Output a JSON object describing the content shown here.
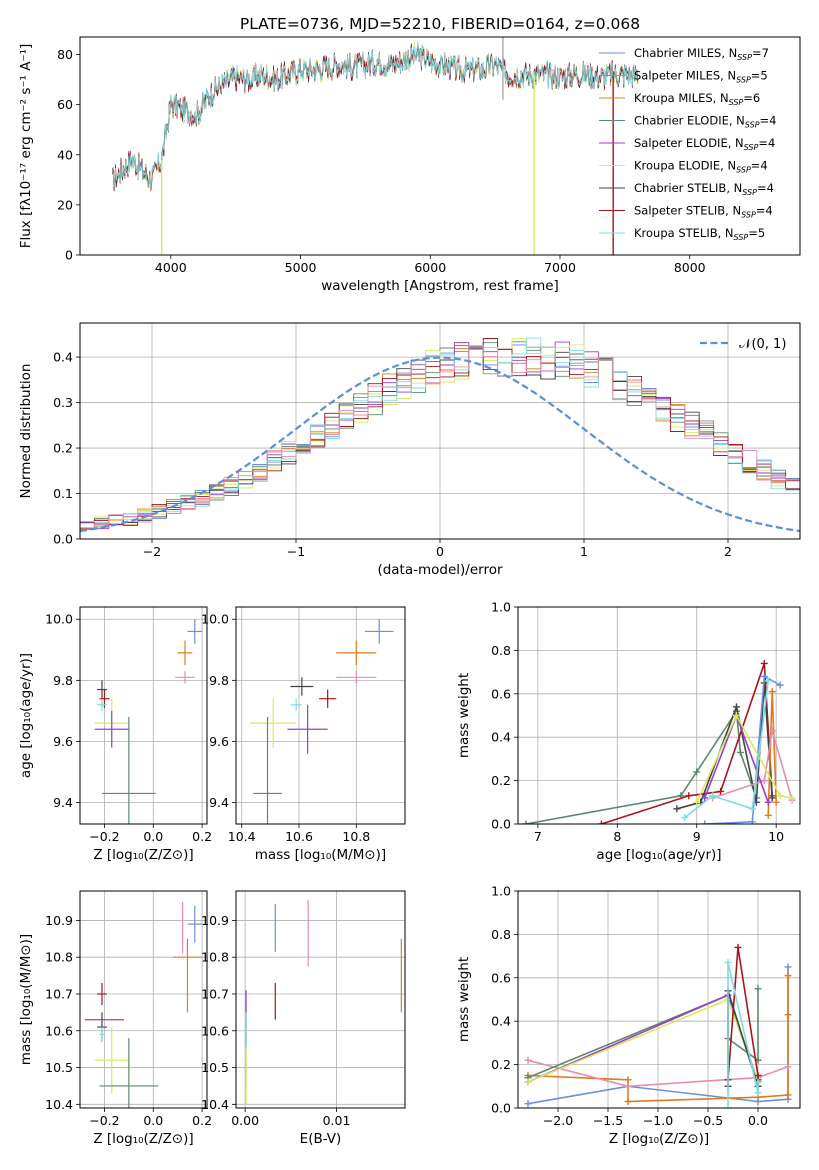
{
  "title": "PLATE=0736, MJD=52210, FIBERID=0164, z=0.068",
  "colors": {
    "chabrier_miles": "#6a8fe0",
    "salpeter_miles": "#e67a3a",
    "kroupa_miles": "#e07b1e",
    "chabrier_elodie": "#5b8a6b",
    "salpeter_elodie": "#9b3dc9",
    "kroupa_elodie": "#d6ea5e",
    "chabrier_stelib": "#444444",
    "salpeter_stelib": "#a8151a",
    "kroupa_stelib": "#7fdde0",
    "pink": "#e88cb2",
    "gauss": "#5b8fdc"
  },
  "chart_data": [
    {
      "type": "line",
      "id": "spectrum",
      "xlabel": "wavelength [Angstrom, rest frame]",
      "ylabel": "Flux [fλ10⁻¹⁷ erg cm⁻² s⁻¹ A⁻¹]",
      "xlim": [
        3300,
        8850
      ],
      "ylim": [
        0,
        87
      ],
      "xticks": [
        4000,
        5000,
        6000,
        7000,
        8000
      ],
      "yticks": [
        0,
        20,
        40,
        60,
        80
      ],
      "legend": [
        {
          "label": "Chabrier MILES, N",
          "sub": "SSP",
          "n": "=7",
          "color": "#6a8fe0"
        },
        {
          "label": "Salpeter MILES, N",
          "sub": "SSP",
          "n": "=5",
          "color": "#e67a3a"
        },
        {
          "label": "Kroupa MILES, N",
          "sub": "SSP",
          "n": "=6",
          "color": "#e07b1e"
        },
        {
          "label": "Chabrier ELODIE, N",
          "sub": "SSP",
          "n": "=4",
          "color": "#5b8a6b"
        },
        {
          "label": "Salpeter ELODIE, N",
          "sub": "SSP",
          "n": "=4",
          "color": "#9b3dc9"
        },
        {
          "label": "Kroupa ELODIE, N",
          "sub": "SSP",
          "n": "=4",
          "color": "#d6ea5e"
        },
        {
          "label": "Chabrier STELIB, N",
          "sub": "SSP",
          "n": "=4",
          "color": "#444444"
        },
        {
          "label": "Salpeter STELIB, N",
          "sub": "SSP",
          "n": "=4",
          "color": "#a8151a"
        },
        {
          "label": "Kroupa STELIB, N",
          "sub": "SSP",
          "n": "=5",
          "color": "#7fdde0"
        }
      ],
      "legend_placement": "upper right",
      "x": [
        3550,
        3700,
        3850,
        3930,
        4000,
        4100,
        4200,
        4300,
        4400,
        4500,
        4600,
        4700,
        4800,
        4900,
        5000,
        5100,
        5200,
        5300,
        5400,
        5500,
        5600,
        5700,
        5800,
        5900,
        6000,
        6100,
        6200,
        6300,
        6400,
        6500,
        6600,
        6700,
        6800,
        6900,
        7000,
        7100,
        7200,
        7300,
        7400,
        7500,
        7600
      ],
      "y": [
        30,
        38,
        30,
        38,
        60,
        58,
        56,
        64,
        68,
        71,
        70,
        72,
        70,
        72,
        74,
        74,
        75,
        76,
        75,
        76,
        77,
        76,
        78,
        80,
        77,
        76,
        74,
        74,
        74,
        76,
        72,
        72,
        72,
        72,
        71,
        72,
        72,
        71,
        72,
        72,
        72
      ],
      "spikes": [
        {
          "x": 3930,
          "ymin": 0,
          "color": "#d6ea5e"
        },
        {
          "x": 6800,
          "ymin": 0,
          "color": "#d6ea5e"
        },
        {
          "x": 7410,
          "ymin": 0,
          "color": "#a8151a"
        },
        {
          "x": 6560,
          "ymin": 62,
          "ymax": 87,
          "color": "#aaaaaa"
        }
      ]
    },
    {
      "type": "histogram",
      "id": "residuals",
      "xlabel": "(data-model)/error",
      "ylabel": "Normed distribution",
      "xlim": [
        -2.5,
        2.5
      ],
      "ylim": [
        0,
        0.475
      ],
      "xticks": [
        -2,
        -1,
        0,
        1,
        2
      ],
      "yticks": [
        0.0,
        0.1,
        0.2,
        0.3,
        0.4
      ],
      "grid": true,
      "bin_width": 0.1,
      "bin_start": -2.5,
      "envelope": [
        0.03,
        0.035,
        0.04,
        0.045,
        0.05,
        0.06,
        0.07,
        0.08,
        0.09,
        0.1,
        0.115,
        0.13,
        0.15,
        0.17,
        0.19,
        0.21,
        0.23,
        0.25,
        0.27,
        0.29,
        0.31,
        0.33,
        0.345,
        0.36,
        0.375,
        0.385,
        0.39,
        0.395,
        0.4,
        0.4,
        0.4,
        0.4,
        0.395,
        0.39,
        0.385,
        0.375,
        0.36,
        0.345,
        0.33,
        0.31,
        0.29,
        0.27,
        0.25,
        0.23,
        0.21,
        0.19,
        0.17,
        0.15,
        0.13,
        0.115,
        0.1,
        0.09,
        0.08,
        0.07,
        0.06,
        0.05,
        0.045,
        0.04,
        0.035,
        0.03
      ],
      "legend": [
        {
          "label": "𝒩(0, 1)",
          "color": "#5b8fdc",
          "style": "dashed"
        }
      ],
      "legend_placement": "upper right"
    },
    {
      "type": "scatter",
      "id": "age_vs_Z",
      "xlabel": "Z [log₁₀(Z/Z⊙)]",
      "ylabel": "age  [log₁₀(age/yr)]",
      "xlim": [
        -0.3,
        0.22
      ],
      "ylim": [
        9.33,
        10.04
      ],
      "xticks": [
        -0.2,
        0.0,
        0.2
      ],
      "yticks": [
        9.4,
        9.6,
        9.8,
        10.0
      ],
      "grid": true,
      "points": [
        {
          "x": 0.17,
          "y": 9.96,
          "xerr": 0.03,
          "yerr": 0.04,
          "color": "#6a8fe0"
        },
        {
          "x": 0.13,
          "y": 9.89,
          "xerr": 0.03,
          "yerr": 0.04,
          "color": "#e07b1e"
        },
        {
          "x": 0.13,
          "y": 9.81,
          "xerr": 0.04,
          "yerr": 0.02,
          "color": "#e88cb2"
        },
        {
          "x": -0.21,
          "y": 9.77,
          "xerr": 0.02,
          "yerr": 0.03,
          "color": "#444444"
        },
        {
          "x": -0.2,
          "y": 9.74,
          "xerr": 0.02,
          "yerr": 0.03,
          "color": "#a8151a"
        },
        {
          "x": -0.21,
          "y": 9.72,
          "xerr": 0.02,
          "yerr": 0.02,
          "color": "#7fdde0"
        },
        {
          "x": -0.17,
          "y": 9.66,
          "xerr": 0.07,
          "yerr": 0.08,
          "color": "#d6ea5e"
        },
        {
          "x": -0.17,
          "y": 9.64,
          "xerr": 0.07,
          "yerr": 0.06,
          "color": "#9b3dc9"
        },
        {
          "x": -0.1,
          "y": 9.43,
          "xerr": 0.11,
          "yerr": 0.25,
          "color": "#5b8a6b"
        }
      ]
    },
    {
      "type": "scatter",
      "id": "age_vs_mass",
      "xlabel": "mass [log₁₀(M/M⊙)]",
      "ylabel": "",
      "xlim": [
        10.38,
        10.97
      ],
      "ylim": [
        9.33,
        10.04
      ],
      "xticks": [
        10.4,
        10.6,
        10.8
      ],
      "yticks": [
        9.4,
        9.6,
        9.8,
        10.0
      ],
      "grid": true,
      "points": [
        {
          "x": 10.88,
          "y": 9.96,
          "xerr": 0.05,
          "yerr": 0.04,
          "color": "#6a8fe0"
        },
        {
          "x": 10.8,
          "y": 9.89,
          "xerr": 0.07,
          "yerr": 0.04,
          "color": "#e07b1e"
        },
        {
          "x": 10.8,
          "y": 9.81,
          "xerr": 0.07,
          "yerr": 0.02,
          "color": "#e88cb2"
        },
        {
          "x": 10.61,
          "y": 9.78,
          "xerr": 0.04,
          "yerr": 0.03,
          "color": "#444444"
        },
        {
          "x": 10.7,
          "y": 9.74,
          "xerr": 0.03,
          "yerr": 0.03,
          "color": "#a8151a"
        },
        {
          "x": 10.59,
          "y": 9.72,
          "xerr": 0.02,
          "yerr": 0.02,
          "color": "#7fdde0"
        },
        {
          "x": 10.51,
          "y": 9.66,
          "xerr": 0.08,
          "yerr": 0.08,
          "color": "#d6ea5e"
        },
        {
          "x": 10.63,
          "y": 9.64,
          "xerr": 0.07,
          "yerr": 0.08,
          "color": "#9b3dc9"
        },
        {
          "x": 10.49,
          "y": 9.43,
          "xerr": 0.05,
          "yerr": 0.25,
          "color": "#5b8a6b"
        }
      ]
    },
    {
      "type": "line",
      "id": "weight_vs_age",
      "xlabel": "age  [log₁₀(age/yr)]",
      "ylabel": "mass weight",
      "xlim": [
        6.75,
        10.3
      ],
      "ylim": [
        0,
        1.0
      ],
      "xticks": [
        7,
        8,
        9,
        10
      ],
      "yticks": [
        0.0,
        0.2,
        0.4,
        0.6,
        0.8,
        1.0
      ],
      "grid": true,
      "series": [
        {
          "color": "#5b8a6b",
          "x": [
            6.85,
            8.8,
            9.0,
            9.5,
            9.55,
            9.75
          ],
          "y": [
            0.0,
            0.13,
            0.24,
            0.52,
            0.33,
            0.12
          ]
        },
        {
          "color": "#a8151a",
          "x": [
            7.8,
            8.9,
            9.3,
            9.85,
            9.95
          ],
          "y": [
            0.0,
            0.13,
            0.15,
            0.74,
            0.13
          ]
        },
        {
          "color": "#444444",
          "x": [
            8.75,
            9.05,
            9.5,
            9.75,
            9.85,
            9.95
          ],
          "y": [
            0.07,
            0.1,
            0.54,
            0.1,
            0.65,
            0.12
          ]
        },
        {
          "color": "#6a8fe0",
          "x": [
            9.1,
            9.7,
            9.85,
            10.05
          ],
          "y": [
            0.0,
            0.01,
            0.68,
            0.64
          ]
        },
        {
          "color": "#e07b1e",
          "x": [
            9.9,
            9.95,
            10.0
          ],
          "y": [
            0.04,
            0.61,
            0.1
          ]
        },
        {
          "color": "#e88cb2",
          "x": [
            9.2,
            9.85,
            9.95,
            10.2
          ],
          "y": [
            0.12,
            0.2,
            0.43,
            0.11
          ]
        },
        {
          "color": "#9b3dc9",
          "x": [
            9.1,
            9.5,
            9.9
          ],
          "y": [
            0.12,
            0.5,
            0.1
          ]
        },
        {
          "color": "#d6ea5e",
          "x": [
            9.0,
            9.5,
            10.05,
            10.2
          ],
          "y": [
            0.1,
            0.5,
            0.13,
            0.12
          ]
        },
        {
          "color": "#7fdde0",
          "x": [
            8.85,
            9.2,
            9.7,
            9.9
          ],
          "y": [
            0.03,
            0.13,
            0.07,
            0.66
          ]
        }
      ]
    },
    {
      "type": "scatter",
      "id": "mass_vs_Z",
      "xlabel": "Z [log₁₀(Z/Z⊙)]",
      "ylabel": "mass [log₁₀(M/M⊙)]",
      "xlim": [
        -0.3,
        0.22
      ],
      "ylim": [
        10.39,
        10.98
      ],
      "xticks": [
        -0.2,
        0.0,
        0.2
      ],
      "yticks": [
        10.4,
        10.5,
        10.6,
        10.7,
        10.8,
        10.9
      ],
      "grid": true,
      "points": [
        {
          "x": 0.17,
          "y": 10.89,
          "xerr": 0.03,
          "yerr": 0.05,
          "color": "#6a8fe0"
        },
        {
          "x": 0.12,
          "y": 10.88,
          "xerr": 0.0,
          "yerr": 0.07,
          "color": "#e88cb2"
        },
        {
          "x": 0.14,
          "y": 10.8,
          "xerr": 0.06,
          "yerr": 0.0,
          "color": "#e67a3a"
        },
        {
          "x": 0.14,
          "y": 10.75,
          "xerr": 0.0,
          "yerr": 0.1,
          "color": "#e07b1e"
        },
        {
          "x": -0.21,
          "y": 10.7,
          "xerr": 0.02,
          "yerr": 0.03,
          "color": "#a8151a"
        },
        {
          "x": -0.2,
          "y": 10.63,
          "xerr": 0.08,
          "yerr": 0.0,
          "color": "#9b3dc9"
        },
        {
          "x": -0.21,
          "y": 10.61,
          "xerr": 0.02,
          "yerr": 0.04,
          "color": "#444444"
        },
        {
          "x": -0.21,
          "y": 10.59,
          "xerr": 0.01,
          "yerr": 0.02,
          "color": "#7fdde0"
        },
        {
          "x": -0.17,
          "y": 10.52,
          "xerr": 0.07,
          "yerr": 0.09,
          "color": "#d6ea5e"
        },
        {
          "x": -0.1,
          "y": 10.45,
          "xerr": 0.12,
          "yerr": 0.13,
          "color": "#5b8a6b"
        }
      ]
    },
    {
      "type": "scatter",
      "id": "mass_vs_ebv",
      "xlabel": "E(B-V)",
      "ylabel": "",
      "xlim": [
        -0.001,
        0.0175
      ],
      "ylim": [
        10.39,
        10.98
      ],
      "xticks": [
        0.0,
        0.01
      ],
      "yticks": [
        10.4,
        10.5,
        10.6,
        10.7,
        10.8,
        10.9
      ],
      "grid": true,
      "points": [
        {
          "x": 0.0033,
          "y": 10.88,
          "yerr": 0.065,
          "color": "#6a8fe0"
        },
        {
          "x": 0.0069,
          "y": 10.865,
          "yerr": 0.09,
          "color": "#e88cb2"
        },
        {
          "x": 0.0171,
          "y": 10.75,
          "yerr": 0.1,
          "color": "#e07b1e"
        },
        {
          "x": 0.0033,
          "y": 10.68,
          "yerr": 0.05,
          "color": "#a8151a"
        },
        {
          "x": 0.0001,
          "y": 10.63,
          "yerr": 0.08,
          "color": "#9b3dc9"
        },
        {
          "x": 0.0001,
          "y": 10.55,
          "yerr": 0.1,
          "color": "#7fdde0"
        },
        {
          "x": 0.0001,
          "y": 10.48,
          "yerr": 0.08,
          "color": "#d6ea5e"
        }
      ]
    },
    {
      "type": "line",
      "id": "weight_vs_Z",
      "xlabel": "Z [log₁₀(Z/Z⊙)]",
      "ylabel": "mass weight",
      "xlim": [
        -2.4,
        0.42
      ],
      "ylim": [
        0,
        1.0
      ],
      "xticks": [
        -2.0,
        -1.5,
        -1.0,
        -0.5,
        0.0
      ],
      "yticks": [
        0.0,
        0.2,
        0.4,
        0.6,
        0.8,
        1.0
      ],
      "grid": true,
      "series": [
        {
          "color": "#6a8fe0",
          "x": [
            -2.3,
            -1.3,
            0.0,
            0.3,
            0.3
          ],
          "y": [
            0.02,
            0.1,
            0.03,
            0.04,
            0.65
          ]
        },
        {
          "color": "#e07b1e",
          "x": [
            -2.3,
            -1.3,
            -1.3,
            0.0,
            0.3,
            0.3,
            0.3
          ],
          "y": [
            0.15,
            0.13,
            0.03,
            0.05,
            0.06,
            0.43,
            0.61
          ]
        },
        {
          "color": "#e88cb2",
          "x": [
            -2.3,
            -1.3,
            0.0,
            0.3
          ],
          "y": [
            0.22,
            0.1,
            0.14,
            0.19
          ]
        },
        {
          "color": "#5b8a6b",
          "x": [
            -2.3,
            -0.3,
            -0.3,
            0.0,
            0.0
          ],
          "y": [
            0.14,
            0.52,
            0.32,
            0.22,
            0.55
          ]
        },
        {
          "color": "#9b3dc9",
          "x": [
            -2.3,
            -0.3,
            0.0
          ],
          "y": [
            0.12,
            0.52,
            0.12
          ]
        },
        {
          "color": "#d6ea5e",
          "x": [
            -2.3,
            -0.3,
            0.0
          ],
          "y": [
            0.12,
            0.5,
            0.12
          ]
        },
        {
          "color": "#a8151a",
          "x": [
            -0.3,
            -0.2,
            0.0,
            0.0
          ],
          "y": [
            0.13,
            0.74,
            0.15,
            0.13
          ]
        },
        {
          "color": "#444444",
          "x": [
            -0.3,
            -0.3,
            0.0,
            0.0
          ],
          "y": [
            0.1,
            0.54,
            0.1,
            0.12
          ]
        },
        {
          "color": "#7fdde0",
          "x": [
            -0.3,
            -0.3,
            0.0,
            0.0
          ],
          "y": [
            0.0,
            0.67,
            0.07,
            0.12
          ]
        }
      ]
    }
  ]
}
